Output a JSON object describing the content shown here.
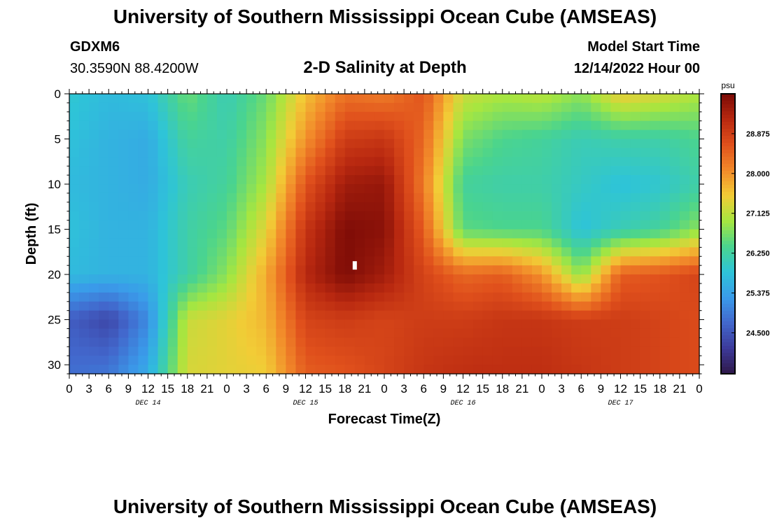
{
  "page": {
    "title": "University of Southern Mississippi Ocean Cube (AMSEAS)",
    "footer_title": "University of Southern Mississippi Ocean Cube (AMSEAS)",
    "station_id": "GDXM6",
    "station_coords": "30.3590N  88.4200W",
    "subtitle": "2-D Salinity at Depth",
    "model_start_label": "Model Start Time",
    "model_start_value": "12/14/2022 Hour 00"
  },
  "chart_data": {
    "type": "heatmap",
    "title": "2-D Salinity at Depth",
    "xlabel": "Forecast Time(Z)",
    "ylabel": "Depth (ft)",
    "x_range_hours": [
      0,
      96
    ],
    "y_range_ft": [
      0,
      31
    ],
    "y_ticks": [
      "0",
      "5",
      "10",
      "15",
      "20",
      "25",
      "30"
    ],
    "x_ticks": [
      "0",
      "3",
      "6",
      "9",
      "12",
      "15",
      "18",
      "21",
      "0",
      "3",
      "6",
      "9",
      "12",
      "15",
      "18",
      "21",
      "0",
      "3",
      "6",
      "9",
      "12",
      "15",
      "18",
      "21",
      "0",
      "3",
      "6",
      "9",
      "12",
      "15",
      "18",
      "21",
      "0"
    ],
    "date_labels": [
      "DEC 14",
      "DEC 15",
      "DEC 16",
      "DEC 17"
    ],
    "colorbar": {
      "unit": "psu",
      "range": [
        23.6,
        29.75
      ],
      "ticks": [
        "24.500",
        "25.375",
        "26.250",
        "27.125",
        "28.000",
        "28.875"
      ],
      "tick_values": [
        24.5,
        25.375,
        26.25,
        27.125,
        28.0,
        28.875
      ],
      "stops": [
        "#2e1848",
        "#3c3a9a",
        "#4267cc",
        "#3a9bea",
        "#2ec4d8",
        "#4ad48e",
        "#a6e640",
        "#f2cc36",
        "#f28a2a",
        "#e0501c",
        "#b82810",
        "#7a0a06"
      ]
    },
    "grid": {
      "hours": [
        0,
        6,
        12,
        18,
        24,
        30,
        36,
        42,
        48,
        54,
        60,
        66,
        72,
        78,
        84,
        90,
        96
      ],
      "depths_ft": [
        0,
        5,
        10,
        15,
        20,
        25,
        31
      ],
      "values": [
        [
          25.9,
          25.7,
          25.8,
          26.6,
          26.1,
          26.6,
          27.6,
          28.3,
          28.2,
          28.6,
          27.2,
          27.0,
          27.1,
          26.8,
          27.5,
          27.3,
          27.0
        ],
        [
          25.8,
          25.6,
          25.5,
          26.3,
          26.2,
          26.8,
          28.0,
          28.9,
          29.0,
          28.4,
          26.7,
          26.4,
          26.3,
          26.1,
          26.2,
          26.2,
          26.4
        ],
        [
          25.7,
          25.6,
          25.5,
          26.1,
          26.3,
          27.0,
          28.6,
          29.4,
          29.5,
          28.2,
          26.3,
          26.2,
          26.2,
          26.0,
          25.8,
          25.9,
          26.2
        ],
        [
          25.8,
          25.6,
          25.6,
          26.2,
          26.5,
          27.4,
          29.0,
          29.7,
          29.6,
          28.5,
          26.5,
          26.4,
          26.4,
          25.8,
          26.1,
          26.3,
          26.8
        ],
        [
          25.7,
          25.6,
          25.6,
          26.2,
          26.8,
          27.8,
          29.2,
          29.7,
          29.4,
          28.8,
          28.4,
          28.5,
          28.0,
          26.8,
          28.5,
          28.6,
          28.8
        ],
        [
          24.6,
          24.3,
          25.1,
          27.2,
          27.4,
          27.7,
          28.8,
          28.9,
          28.8,
          28.9,
          28.9,
          29.0,
          29.0,
          28.9,
          28.9,
          28.8,
          28.7
        ],
        [
          24.8,
          24.9,
          25.5,
          27.3,
          27.4,
          27.5,
          28.5,
          28.6,
          28.8,
          29.0,
          29.1,
          29.1,
          29.1,
          29.0,
          28.9,
          28.8,
          28.7
        ]
      ]
    },
    "marker": {
      "hour": 43.5,
      "depth_ft": 19
    }
  }
}
